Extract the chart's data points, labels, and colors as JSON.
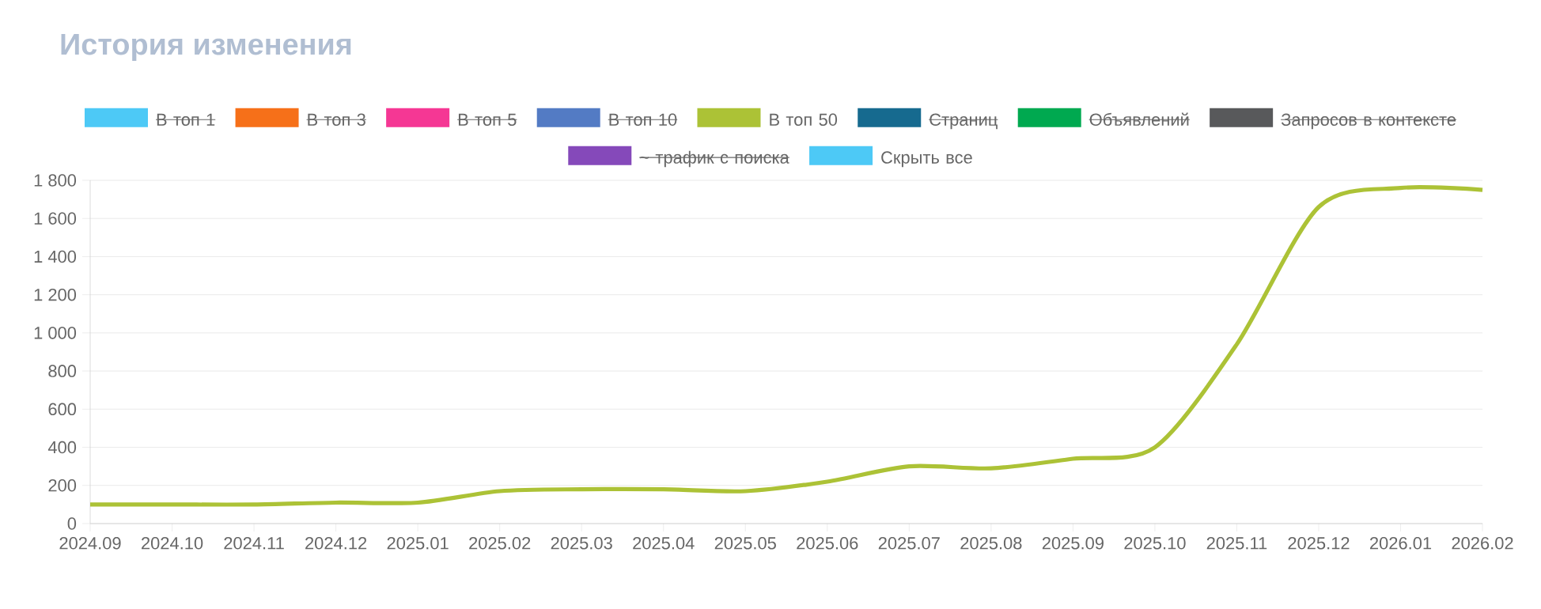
{
  "chart_data": {
    "type": "line",
    "title": "История изменения",
    "categories": [
      "2024.09",
      "2024.10",
      "2024.11",
      "2024.12",
      "2025.01",
      "2025.02",
      "2025.03",
      "2025.04",
      "2025.05",
      "2025.06",
      "2025.07",
      "2025.08",
      "2025.09",
      "2025.10",
      "2025.11",
      "2025.12",
      "2026.01",
      "2026.02"
    ],
    "series": [
      {
        "name": "В топ 1",
        "color": "#4dc9f6",
        "values": [
          null,
          null,
          null,
          null,
          null,
          null,
          null,
          null,
          null,
          null,
          null,
          null,
          null,
          null,
          null,
          null,
          null,
          null
        ]
      },
      {
        "name": "В топ 3",
        "color": "#f67019",
        "values": [
          null,
          null,
          null,
          null,
          null,
          null,
          null,
          null,
          null,
          null,
          null,
          null,
          null,
          null,
          null,
          null,
          null,
          null
        ]
      },
      {
        "name": "В топ 5",
        "color": "#f53794",
        "values": [
          null,
          null,
          null,
          null,
          null,
          null,
          null,
          null,
          null,
          null,
          null,
          null,
          null,
          null,
          null,
          null,
          null,
          null
        ]
      },
      {
        "name": "В топ 10",
        "color": "#537bc4",
        "values": [
          null,
          null,
          null,
          null,
          null,
          null,
          null,
          null,
          null,
          null,
          null,
          null,
          null,
          null,
          null,
          null,
          null,
          null
        ]
      },
      {
        "name": "В топ 50",
        "color": "#acc236",
        "values": [
          100,
          100,
          100,
          110,
          110,
          170,
          180,
          180,
          170,
          220,
          300,
          290,
          340,
          400,
          940,
          1660,
          1760,
          1750
        ]
      },
      {
        "name": "Страниц",
        "color": "#166a8f",
        "values": [
          null,
          null,
          null,
          null,
          null,
          null,
          null,
          null,
          null,
          null,
          null,
          null,
          null,
          null,
          null,
          null,
          null,
          null
        ]
      },
      {
        "name": "Объявлений",
        "color": "#00a950",
        "values": [
          null,
          null,
          null,
          null,
          null,
          null,
          null,
          null,
          null,
          null,
          null,
          null,
          null,
          null,
          null,
          null,
          null,
          null
        ]
      },
      {
        "name": "Запросов в контексте",
        "color": "#58595b",
        "values": [
          null,
          null,
          null,
          null,
          null,
          null,
          null,
          null,
          null,
          null,
          null,
          null,
          null,
          null,
          null,
          null,
          null,
          null
        ]
      },
      {
        "name": "~ трафик с поиска",
        "color": "#8549ba",
        "values": [
          null,
          null,
          null,
          null,
          null,
          null,
          null,
          null,
          null,
          null,
          null,
          null,
          null,
          null,
          null,
          null,
          null,
          null
        ]
      }
    ],
    "annotations": [
      "Скрыть все"
    ],
    "ylim": [
      0,
      1800
    ],
    "yticks": [
      0,
      200,
      400,
      600,
      800,
      {
        "value": 1000,
        "label": "1 000"
      },
      {
        "value": 1200,
        "label": "1 200"
      },
      {
        "value": 1400,
        "label": "1 400"
      },
      {
        "value": 1600,
        "label": "1 600"
      },
      {
        "value": 1800,
        "label": "1 800"
      }
    ],
    "grid": "y",
    "legend": "top",
    "marker": "none",
    "line_style": "solid"
  }
}
